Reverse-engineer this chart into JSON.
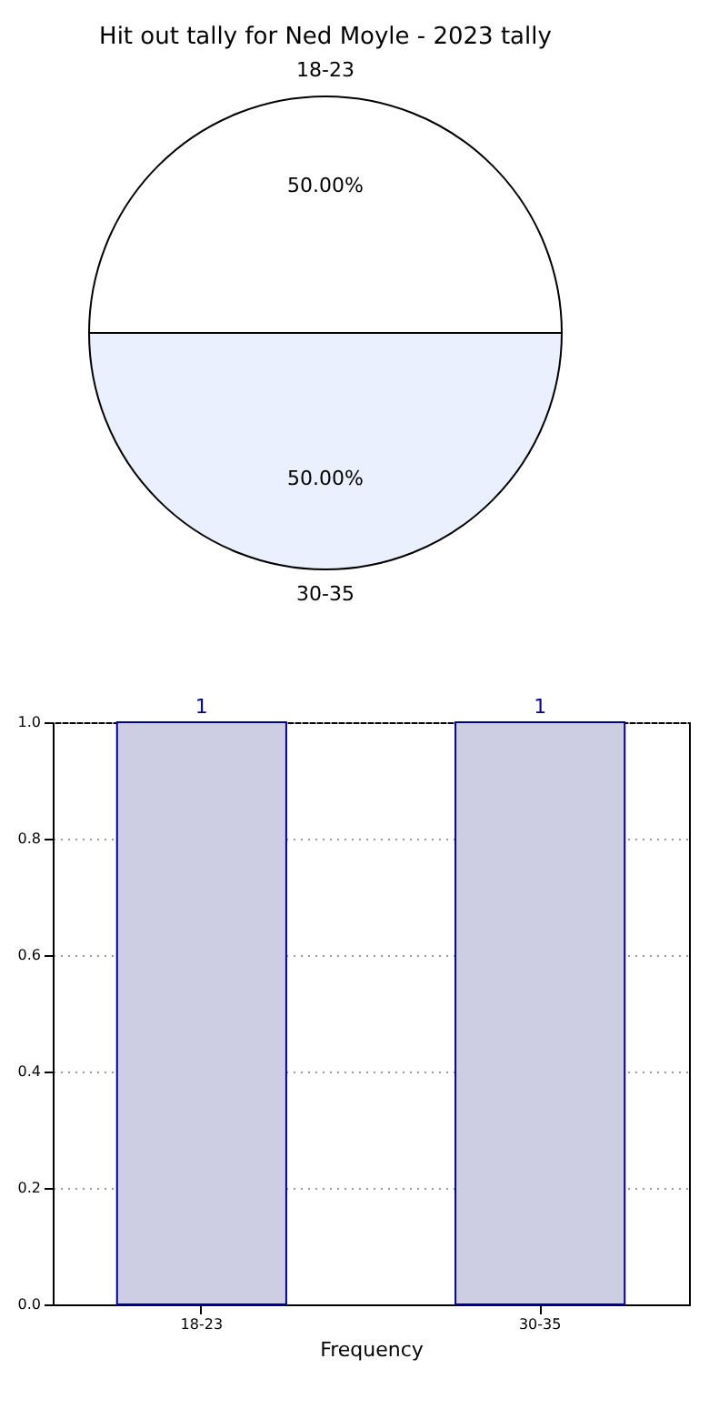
{
  "chart_data": [
    {
      "type": "pie",
      "title": "Hit out tally for Ned Moyle - 2023 tally",
      "categories": [
        "18-23",
        "30-35"
      ],
      "values": [
        50,
        50
      ],
      "colors": [
        "#ffffff",
        "#eaf0fd"
      ],
      "value_labels": [
        "50.00%",
        "50.00%"
      ]
    },
    {
      "type": "bar",
      "categories": [
        "18-23",
        "30-35"
      ],
      "values": [
        1,
        1
      ],
      "color": "#cdcde4",
      "xlabel": "Frequency",
      "ylim": [
        0,
        1
      ],
      "yticks": [
        {
          "value": 0,
          "label": "0.0"
        },
        {
          "value": 0.2,
          "label": "0.2"
        },
        {
          "value": 0.4,
          "label": "0.4"
        },
        {
          "value": 0.6,
          "label": "0.6"
        },
        {
          "value": 0.8,
          "label": "0.8"
        },
        {
          "value": 1,
          "label": "1.0"
        }
      ],
      "grid": true,
      "data_labels": true
    }
  ]
}
